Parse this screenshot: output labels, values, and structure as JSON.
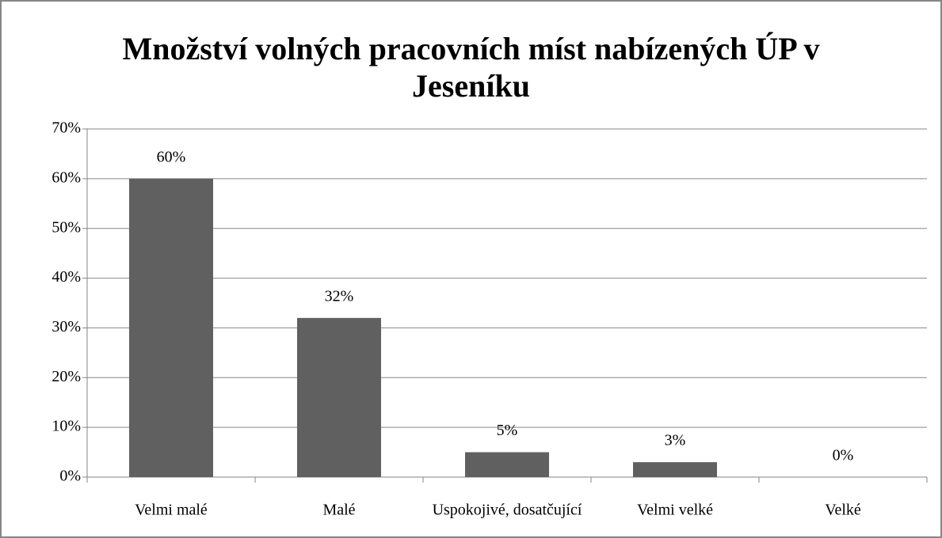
{
  "chart_data": {
    "type": "bar",
    "title": "Množství volných pracovních míst nabízených ÚP v Jeseníku",
    "categories": [
      "Velmi malé",
      "Malé",
      "Uspokojivé, dosatčující",
      "Velmi velké",
      "Velké"
    ],
    "values": [
      60,
      32,
      5,
      3,
      0
    ],
    "value_labels": [
      "60%",
      "32%",
      "5%",
      "3%",
      "0%"
    ],
    "color": "#606060",
    "ylim": [
      0,
      70
    ],
    "yticks": [
      {
        "value": 0,
        "label": "0%"
      },
      {
        "value": 10,
        "label": "10%"
      },
      {
        "value": 20,
        "label": "20%"
      },
      {
        "value": 30,
        "label": "30%"
      },
      {
        "value": 40,
        "label": "40%"
      },
      {
        "value": 50,
        "label": "50%"
      },
      {
        "value": 60,
        "label": "60%"
      },
      {
        "value": 70,
        "label": "70%"
      }
    ],
    "grid": true
  }
}
